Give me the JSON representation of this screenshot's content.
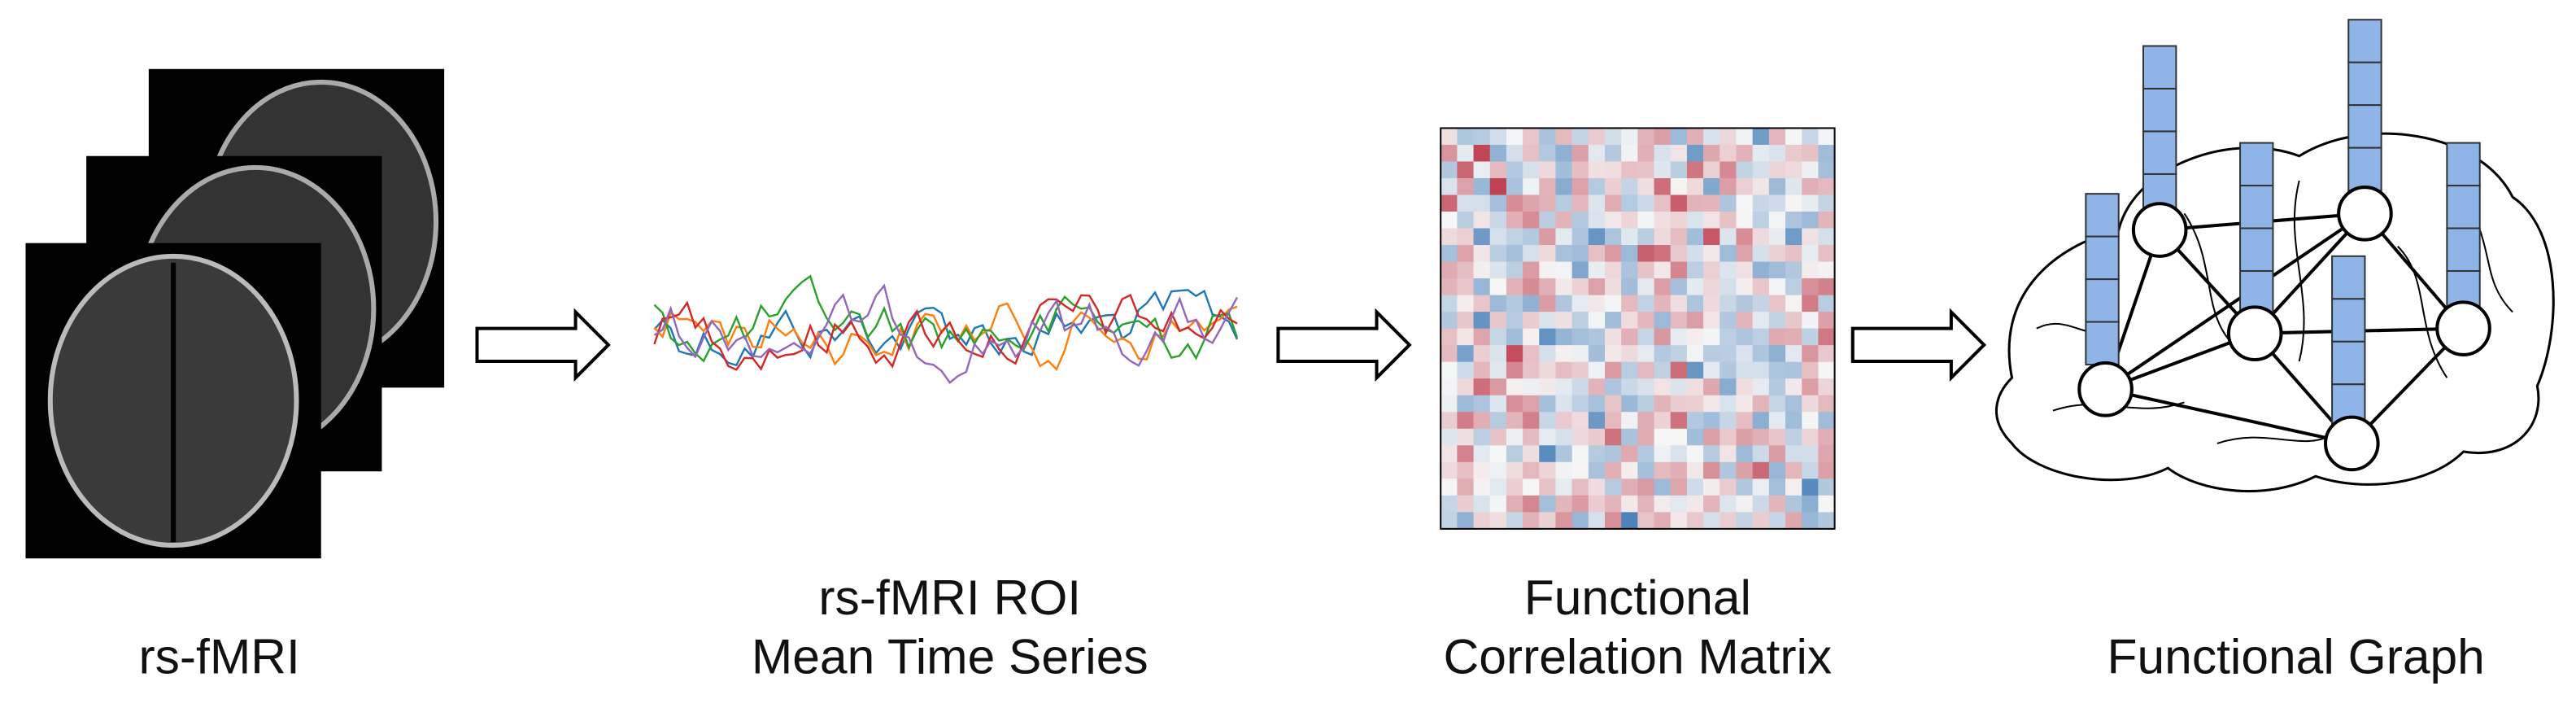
{
  "stages": [
    {
      "label": [
        "rs-fMRI"
      ]
    },
    {
      "label": [
        "rs-fMRI ROI",
        "Mean Time Series"
      ]
    },
    {
      "label": [
        "Functional",
        "Correlation Matrix"
      ]
    },
    {
      "label": [
        "Functional Graph"
      ]
    }
  ]
}
